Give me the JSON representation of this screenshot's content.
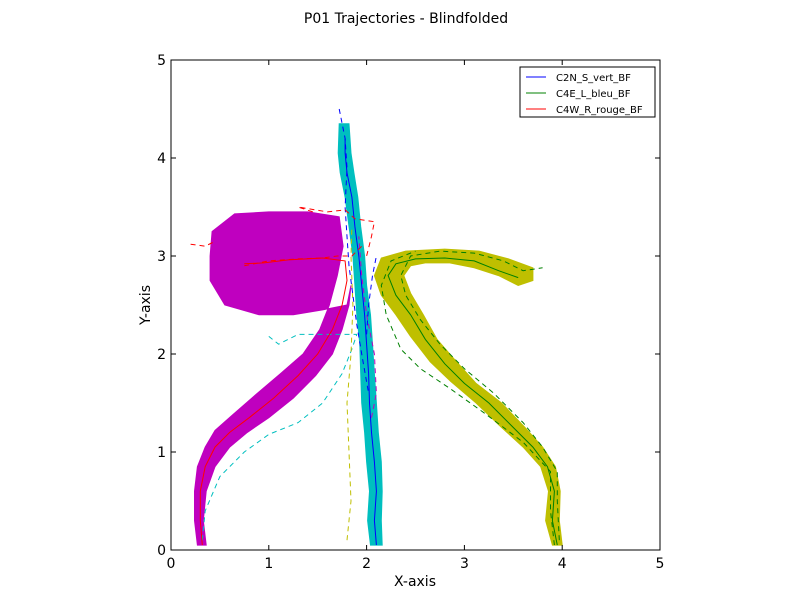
{
  "chart_data": {
    "type": "line",
    "title": "P01 Trajectories - Blindfolded",
    "xlabel": "X-axis",
    "ylabel": "Y-axis",
    "xlim": [
      0,
      5
    ],
    "ylim": [
      0,
      5
    ],
    "xticks": [
      "0",
      "1",
      "2",
      "3",
      "4",
      "5"
    ],
    "yticks": [
      "0",
      "1",
      "2",
      "3",
      "4",
      "5"
    ],
    "grid": false,
    "legend_position": "top-right",
    "series": [
      {
        "name": "C2N_S_vert_BF",
        "color": "#0000ff",
        "band_color": "#00bfbf",
        "mean": [
          [
            2.1,
            0.05
          ],
          [
            2.08,
            0.3
          ],
          [
            2.1,
            0.6
          ],
          [
            2.08,
            0.9
          ],
          [
            2.05,
            1.2
          ],
          [
            2.03,
            1.5
          ],
          [
            2.02,
            1.8
          ],
          [
            2.0,
            2.1
          ],
          [
            1.98,
            2.4
          ],
          [
            1.95,
            2.7
          ],
          [
            1.92,
            3.0
          ],
          [
            1.88,
            3.3
          ],
          [
            1.85,
            3.6
          ],
          [
            1.8,
            3.85
          ],
          [
            1.78,
            4.05
          ],
          [
            1.78,
            4.2
          ]
        ],
        "upper": [
          [
            2.16,
            0.05
          ],
          [
            2.15,
            0.3
          ],
          [
            2.16,
            0.6
          ],
          [
            2.15,
            0.9
          ],
          [
            2.12,
            1.2
          ],
          [
            2.1,
            1.5
          ],
          [
            2.08,
            1.8
          ],
          [
            2.06,
            2.1
          ],
          [
            2.04,
            2.4
          ],
          [
            2.0,
            2.7
          ],
          [
            1.98,
            3.0
          ],
          [
            1.94,
            3.3
          ],
          [
            1.91,
            3.6
          ],
          [
            1.87,
            3.85
          ],
          [
            1.84,
            4.05
          ],
          [
            1.82,
            4.35
          ]
        ],
        "lower": [
          [
            2.04,
            0.05
          ],
          [
            2.01,
            0.3
          ],
          [
            2.03,
            0.6
          ],
          [
            2.0,
            0.9
          ],
          [
            1.98,
            1.2
          ],
          [
            1.95,
            1.5
          ],
          [
            1.94,
            1.8
          ],
          [
            1.93,
            2.1
          ],
          [
            1.9,
            2.4
          ],
          [
            1.88,
            2.7
          ],
          [
            1.86,
            3.0
          ],
          [
            1.82,
            3.3
          ],
          [
            1.78,
            3.6
          ],
          [
            1.73,
            3.85
          ],
          [
            1.71,
            4.05
          ],
          [
            1.72,
            4.35
          ]
        ],
        "dashed": [
          [
            [
              2.0,
              2.2
            ],
            [
              2.02,
              2.5
            ],
            [
              2.06,
              2.8
            ],
            [
              2.1,
              3.0
            ]
          ],
          [
            [
              1.72,
              4.5
            ],
            [
              1.78,
              4.2
            ],
            [
              1.8,
              3.9
            ],
            [
              1.78,
              3.5
            ],
            [
              1.8,
              3.2
            ],
            [
              1.82,
              2.9
            ],
            [
              1.86,
              2.6
            ],
            [
              1.9,
              2.3
            ],
            [
              1.95,
              2.0
            ],
            [
              2.02,
              1.6
            ]
          ]
        ]
      },
      {
        "name": "C4E_L_bleu_BF",
        "color": "#008000",
        "band_color": "#bfbf00",
        "mean": [
          [
            3.95,
            0.05
          ],
          [
            3.9,
            0.3
          ],
          [
            3.92,
            0.6
          ],
          [
            3.85,
            0.85
          ],
          [
            3.7,
            1.05
          ],
          [
            3.5,
            1.25
          ],
          [
            3.25,
            1.5
          ],
          [
            3.0,
            1.7
          ],
          [
            2.8,
            1.9
          ],
          [
            2.6,
            2.15
          ],
          [
            2.45,
            2.4
          ],
          [
            2.3,
            2.6
          ],
          [
            2.22,
            2.8
          ],
          [
            2.3,
            2.92
          ],
          [
            2.5,
            2.97
          ],
          [
            2.8,
            2.98
          ],
          [
            3.1,
            2.95
          ],
          [
            3.35,
            2.85
          ],
          [
            3.55,
            2.78
          ]
        ],
        "upper": [
          [
            4.0,
            0.05
          ],
          [
            3.97,
            0.3
          ],
          [
            3.98,
            0.6
          ],
          [
            3.93,
            0.85
          ],
          [
            3.8,
            1.05
          ],
          [
            3.62,
            1.25
          ],
          [
            3.38,
            1.5
          ],
          [
            3.12,
            1.7
          ],
          [
            2.92,
            1.92
          ],
          [
            2.72,
            2.15
          ],
          [
            2.58,
            2.4
          ],
          [
            2.45,
            2.62
          ],
          [
            2.38,
            2.8
          ],
          [
            2.45,
            2.9
          ],
          [
            2.6,
            2.93
          ],
          [
            2.85,
            2.93
          ],
          [
            3.1,
            2.88
          ],
          [
            3.35,
            2.8
          ],
          [
            3.55,
            2.7
          ],
          [
            3.7,
            2.75
          ]
        ],
        "lower": [
          [
            3.9,
            0.05
          ],
          [
            3.83,
            0.3
          ],
          [
            3.86,
            0.6
          ],
          [
            3.78,
            0.85
          ],
          [
            3.6,
            1.05
          ],
          [
            3.38,
            1.25
          ],
          [
            3.12,
            1.5
          ],
          [
            2.86,
            1.72
          ],
          [
            2.65,
            1.92
          ],
          [
            2.45,
            2.18
          ],
          [
            2.3,
            2.4
          ],
          [
            2.15,
            2.6
          ],
          [
            2.08,
            2.8
          ],
          [
            2.15,
            2.98
          ],
          [
            2.4,
            3.05
          ],
          [
            2.8,
            3.07
          ],
          [
            3.15,
            3.05
          ],
          [
            3.45,
            2.97
          ],
          [
            3.7,
            2.88
          ]
        ],
        "dashed": [
          [
            [
              3.97,
              0.1
            ],
            [
              3.95,
              0.5
            ],
            [
              3.95,
              0.8
            ],
            [
              3.8,
              1.05
            ],
            [
              3.6,
              1.3
            ],
            [
              3.3,
              1.6
            ],
            [
              3.0,
              1.85
            ],
            [
              2.75,
              2.1
            ],
            [
              2.55,
              2.35
            ],
            [
              2.4,
              2.6
            ],
            [
              2.35,
              2.8
            ],
            [
              2.45,
              3.0
            ],
            [
              2.75,
              3.05
            ],
            [
              3.1,
              3.03
            ],
            [
              3.4,
              2.95
            ],
            [
              3.6,
              2.85
            ],
            [
              3.8,
              2.88
            ]
          ],
          [
            [
              3.92,
              0.05
            ],
            [
              3.88,
              0.4
            ],
            [
              3.88,
              0.8
            ],
            [
              3.6,
              1.1
            ],
            [
              3.2,
              1.4
            ],
            [
              2.85,
              1.65
            ],
            [
              2.55,
              1.85
            ],
            [
              2.35,
              2.05
            ],
            [
              2.2,
              2.4
            ],
            [
              2.15,
              2.7
            ],
            [
              2.25,
              2.95
            ],
            [
              2.5,
              3.05
            ]
          ]
        ]
      },
      {
        "name": "C4W_R_rouge_BF",
        "color": "#ff0000",
        "band_color": "#bf00bf",
        "mean": [
          [
            0.32,
            0.05
          ],
          [
            0.3,
            0.3
          ],
          [
            0.3,
            0.6
          ],
          [
            0.35,
            0.85
          ],
          [
            0.45,
            1.05
          ],
          [
            0.6,
            1.2
          ],
          [
            0.8,
            1.35
          ],
          [
            1.05,
            1.55
          ],
          [
            1.3,
            1.78
          ],
          [
            1.5,
            2.0
          ],
          [
            1.65,
            2.25
          ],
          [
            1.75,
            2.5
          ],
          [
            1.8,
            2.75
          ],
          [
            1.78,
            2.95
          ],
          [
            1.55,
            2.98
          ],
          [
            1.2,
            2.96
          ],
          [
            0.95,
            2.93
          ],
          [
            0.75,
            2.92
          ]
        ],
        "upper": [
          [
            0.36,
            0.05
          ],
          [
            0.33,
            0.3
          ],
          [
            0.36,
            0.6
          ],
          [
            0.45,
            0.85
          ],
          [
            0.6,
            1.05
          ],
          [
            0.78,
            1.2
          ],
          [
            1.0,
            1.35
          ],
          [
            1.25,
            1.55
          ],
          [
            1.48,
            1.78
          ],
          [
            1.65,
            2.0
          ],
          [
            1.75,
            2.25
          ],
          [
            1.82,
            2.5
          ],
          [
            1.84,
            2.7
          ],
          [
            1.8,
            2.5
          ],
          [
            1.55,
            2.45
          ],
          [
            1.25,
            2.4
          ],
          [
            0.9,
            2.4
          ],
          [
            0.55,
            2.5
          ],
          [
            0.4,
            2.75
          ],
          [
            0.4,
            3.0
          ]
        ],
        "lower": [
          [
            0.27,
            0.05
          ],
          [
            0.24,
            0.3
          ],
          [
            0.24,
            0.6
          ],
          [
            0.27,
            0.85
          ],
          [
            0.35,
            1.05
          ],
          [
            0.45,
            1.22
          ],
          [
            0.62,
            1.37
          ],
          [
            0.85,
            1.57
          ],
          [
            1.12,
            1.8
          ],
          [
            1.35,
            2.0
          ],
          [
            1.52,
            2.25
          ],
          [
            1.62,
            2.5
          ],
          [
            1.7,
            2.8
          ],
          [
            1.76,
            3.1
          ],
          [
            1.72,
            3.4
          ],
          [
            1.4,
            3.45
          ],
          [
            1.0,
            3.45
          ],
          [
            0.65,
            3.43
          ],
          [
            0.42,
            3.25
          ],
          [
            0.4,
            3.0
          ]
        ],
        "dashed": [
          [
            [
              0.2,
              3.12
            ],
            [
              0.35,
              3.1
            ],
            [
              0.45,
              3.15
            ]
          ],
          [
            [
              0.75,
              2.9
            ],
            [
              1.0,
              2.95
            ],
            [
              1.3,
              2.97
            ],
            [
              1.55,
              2.98
            ],
            [
              1.7,
              3.0
            ],
            [
              1.85,
              3.0
            ],
            [
              1.95,
              3.1
            ]
          ],
          [
            [
              1.45,
              3.45
            ],
            [
              1.3,
              3.5
            ],
            [
              1.6,
              3.45
            ],
            [
              1.78,
              3.47
            ],
            [
              1.88,
              3.38
            ],
            [
              2.08,
              3.35
            ],
            [
              2.05,
              3.2
            ],
            [
              2.0,
              3.0
            ]
          ]
        ]
      }
    ],
    "extra_dashed": [
      {
        "color": "#00bfbf",
        "points": [
          [
            0.32,
            0.1
          ],
          [
            0.35,
            0.4
          ],
          [
            0.5,
            0.75
          ],
          [
            0.75,
            1.0
          ],
          [
            1.0,
            1.18
          ],
          [
            1.3,
            1.3
          ],
          [
            1.55,
            1.5
          ],
          [
            1.75,
            1.8
          ],
          [
            1.85,
            2.05
          ],
          [
            1.9,
            2.2
          ],
          [
            1.75,
            2.2
          ],
          [
            1.5,
            2.2
          ],
          [
            1.3,
            2.2
          ],
          [
            1.1,
            2.1
          ],
          [
            1.0,
            2.18
          ]
        ]
      },
      {
        "color": "#bfbf00",
        "points": [
          [
            1.8,
            0.1
          ],
          [
            1.84,
            0.5
          ],
          [
            1.82,
            1.0
          ],
          [
            1.8,
            1.5
          ],
          [
            1.84,
            2.0
          ],
          [
            1.86,
            2.5
          ],
          [
            1.84,
            3.0
          ],
          [
            1.85,
            3.3
          ]
        ]
      },
      {
        "color": "#bf00bf",
        "points": [
          [
            2.05,
            1.35
          ],
          [
            2.1,
            1.6
          ],
          [
            2.08,
            2.0
          ],
          [
            2.0,
            2.4
          ],
          [
            1.95,
            2.8
          ],
          [
            1.92,
            3.2
          ]
        ]
      }
    ]
  }
}
